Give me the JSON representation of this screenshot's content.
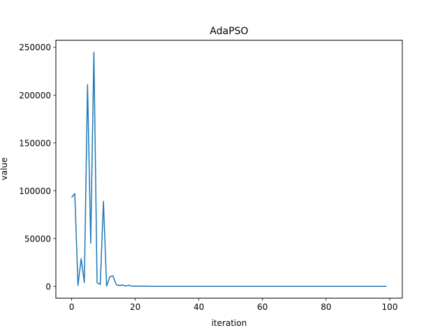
{
  "chart_data": {
    "type": "line",
    "title": "AdaPSO",
    "xlabel": "iteration",
    "ylabel": "value",
    "xlim": [
      -4.95,
      103.95
    ],
    "ylim": [
      -12300,
      257400
    ],
    "x_ticks": [
      0,
      20,
      40,
      60,
      80,
      100
    ],
    "y_ticks": [
      0,
      50000,
      100000,
      150000,
      200000,
      250000
    ],
    "x_tick_labels": [
      "0",
      "20",
      "40",
      "60",
      "80",
      "100"
    ],
    "y_tick_labels": [
      "0",
      "50000",
      "100000",
      "150000",
      "200000",
      "250000"
    ],
    "grid": false,
    "line_color": "#1f77b4",
    "series": [
      {
        "x": [
          0,
          1,
          2,
          3,
          4,
          5,
          6,
          7,
          8,
          9,
          10,
          11,
          12,
          13,
          14,
          15,
          16,
          17,
          18,
          19,
          20,
          21,
          22,
          23,
          24,
          25,
          26,
          27,
          28,
          29,
          30,
          31,
          32,
          33,
          34,
          35,
          36,
          37,
          38,
          39,
          40,
          41,
          42,
          43,
          44,
          45,
          46,
          47,
          48,
          49,
          50,
          51,
          52,
          53,
          54,
          55,
          56,
          57,
          58,
          59,
          60,
          61,
          62,
          63,
          64,
          65,
          66,
          67,
          68,
          69,
          70,
          71,
          72,
          73,
          74,
          75,
          76,
          77,
          78,
          79,
          80,
          81,
          82,
          83,
          84,
          85,
          86,
          87,
          88,
          89,
          90,
          91,
          92,
          93,
          94,
          95,
          96,
          97,
          98,
          99
        ],
        "y": [
          93000,
          97000,
          1000,
          29000,
          4000,
          211000,
          45000,
          245000,
          4000,
          2000,
          89000,
          300,
          10000,
          11000,
          2000,
          800,
          1500,
          300,
          1200,
          200,
          300,
          100,
          200,
          300,
          100,
          50,
          50,
          50,
          50,
          50,
          50,
          50,
          50,
          50,
          50,
          50,
          50,
          50,
          50,
          50,
          50,
          50,
          50,
          50,
          50,
          50,
          50,
          50,
          50,
          50,
          50,
          50,
          50,
          50,
          50,
          50,
          50,
          50,
          50,
          50,
          50,
          50,
          50,
          50,
          50,
          50,
          50,
          50,
          50,
          50,
          50,
          50,
          50,
          50,
          50,
          50,
          50,
          50,
          50,
          50,
          50,
          50,
          50,
          50,
          50,
          50,
          50,
          50,
          50,
          50,
          50,
          50,
          50,
          50,
          50,
          50,
          50,
          50,
          50,
          50
        ]
      }
    ]
  }
}
